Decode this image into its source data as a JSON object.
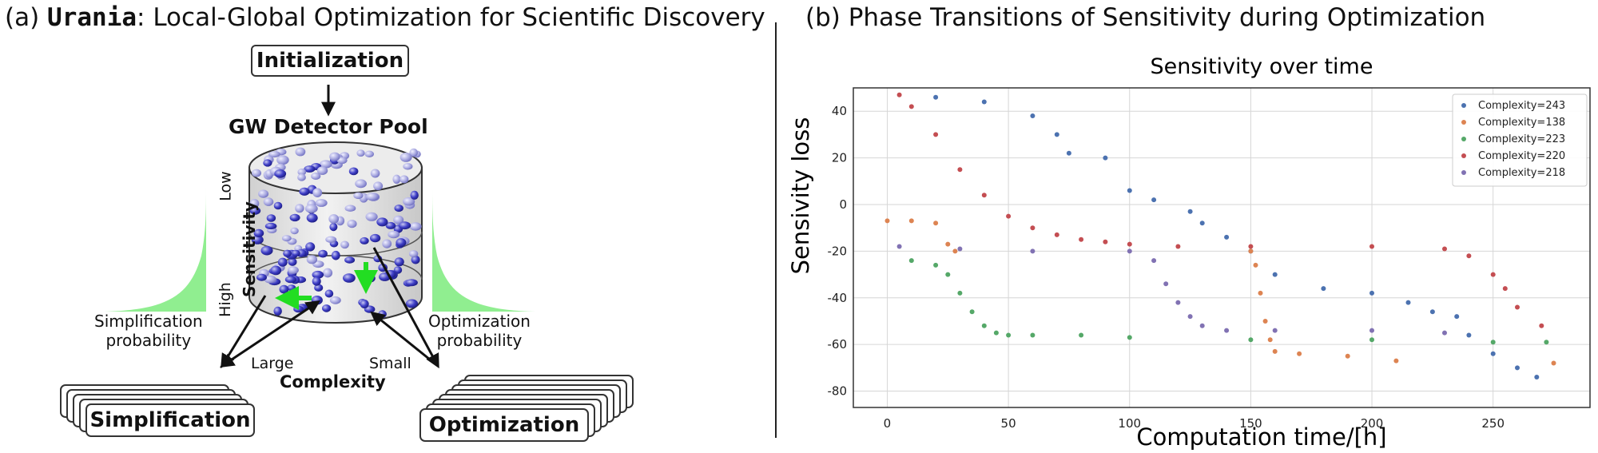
{
  "panel_a": {
    "title_prefix": "(a) ",
    "title_name": "Urania",
    "title_rest": ": Local-Global Optimization for Scientific Discovery",
    "init_label": "Initialization",
    "pool_label": "GW Detector Pool",
    "axis_low": "Low",
    "axis_sensitivity": "Sensitivity",
    "axis_high": "High",
    "simp_prob": [
      "Simplification",
      "probability"
    ],
    "opt_prob": [
      "Optimization",
      "probability"
    ],
    "large": "Large",
    "small": "Small",
    "complexity": "Complexity",
    "simp_box": "Simplification",
    "opt_box": "Optimization",
    "curve_color": "#90ee90",
    "sphere_color": "#3b3bc4",
    "arrow_green": "#22dd22"
  },
  "panel_b": {
    "title": "(b) Phase Transitions of Sensitivity during Optimization"
  },
  "chart_data": {
    "type": "scatter",
    "title": "Sensitivity over time",
    "xlabel": "Computation time/[h]",
    "ylabel": "Sensivity loss",
    "xlim": [
      -14,
      290
    ],
    "ylim": [
      -87,
      50
    ],
    "xticks": [
      0,
      50,
      100,
      150,
      200,
      250
    ],
    "yticks": [
      -80,
      -60,
      -40,
      -20,
      0,
      20,
      40
    ],
    "grid": true,
    "legend_position": "top-right",
    "series": [
      {
        "name": "Complexity=243",
        "color": "#4c72b0",
        "x": [
          20,
          40,
          60,
          70,
          75,
          90,
          100,
          110,
          125,
          130,
          140,
          150,
          160,
          180,
          200,
          215,
          225,
          235,
          240,
          250,
          260,
          268
        ],
        "y": [
          46,
          44,
          38,
          30,
          22,
          20,
          6,
          2,
          -3,
          -8,
          -14,
          -20,
          -30,
          -36,
          -38,
          -42,
          -46,
          -48,
          -56,
          -64,
          -70,
          -74
        ]
      },
      {
        "name": "Complexity=138",
        "color": "#dd8452",
        "x": [
          0,
          10,
          20,
          25,
          28,
          150,
          152,
          154,
          156,
          158,
          160,
          170,
          190,
          210,
          275
        ],
        "y": [
          -7,
          -7,
          -8,
          -17,
          -20,
          -20,
          -26,
          -38,
          -50,
          -58,
          -63,
          -64,
          -65,
          -67,
          -68
        ]
      },
      {
        "name": "Complexity=223",
        "color": "#55a868",
        "x": [
          10,
          20,
          25,
          30,
          35,
          40,
          45,
          50,
          60,
          80,
          100,
          150,
          200,
          250,
          272
        ],
        "y": [
          -24,
          -26,
          -30,
          -38,
          -46,
          -52,
          -55,
          -56,
          -56,
          -56,
          -57,
          -58,
          -58,
          -59,
          -59
        ]
      },
      {
        "name": "Complexity=220",
        "color": "#c44e52",
        "x": [
          5,
          10,
          20,
          30,
          40,
          50,
          60,
          70,
          80,
          90,
          100,
          120,
          150,
          200,
          230,
          240,
          250,
          255,
          260,
          270
        ],
        "y": [
          47,
          42,
          30,
          15,
          4,
          -5,
          -10,
          -13,
          -15,
          -16,
          -17,
          -18,
          -18,
          -18,
          -19,
          -22,
          -30,
          -36,
          -44,
          -52
        ]
      },
      {
        "name": "Complexity=218",
        "color": "#8172b3",
        "x": [
          5,
          30,
          60,
          100,
          110,
          115,
          120,
          125,
          130,
          140,
          160,
          200,
          230
        ],
        "y": [
          -18,
          -19,
          -20,
          -20,
          -24,
          -34,
          -42,
          -48,
          -52,
          -54,
          -54,
          -54,
          -55
        ]
      }
    ]
  }
}
